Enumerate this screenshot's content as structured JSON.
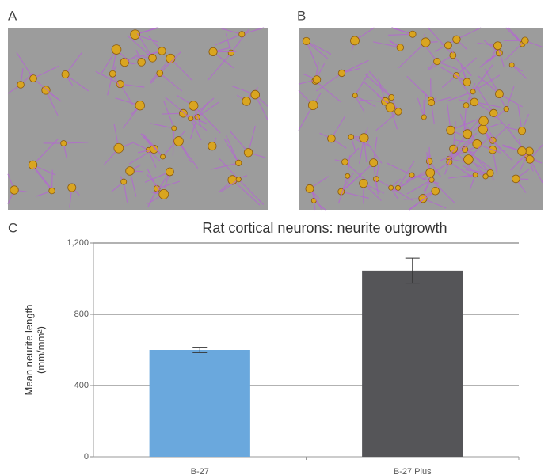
{
  "panels": {
    "a": "A",
    "b": "B",
    "c": "C"
  },
  "chart_data": {
    "type": "bar",
    "title": "Rat cortical neurons: neurite outgrowth",
    "ylabel": [
      "Mean neurite length",
      "(mm/mm²)"
    ],
    "categories": [
      "B-27",
      "B-27 Plus"
    ],
    "values": [
      600,
      1045
    ],
    "errors": [
      15,
      70
    ],
    "colors": [
      "#6aa8dd",
      "#555558"
    ],
    "ylim": [
      0,
      1200
    ],
    "yticks": [
      0,
      400,
      800,
      {
        "value": 1200,
        "label": "1,200"
      }
    ],
    "grid": true
  }
}
